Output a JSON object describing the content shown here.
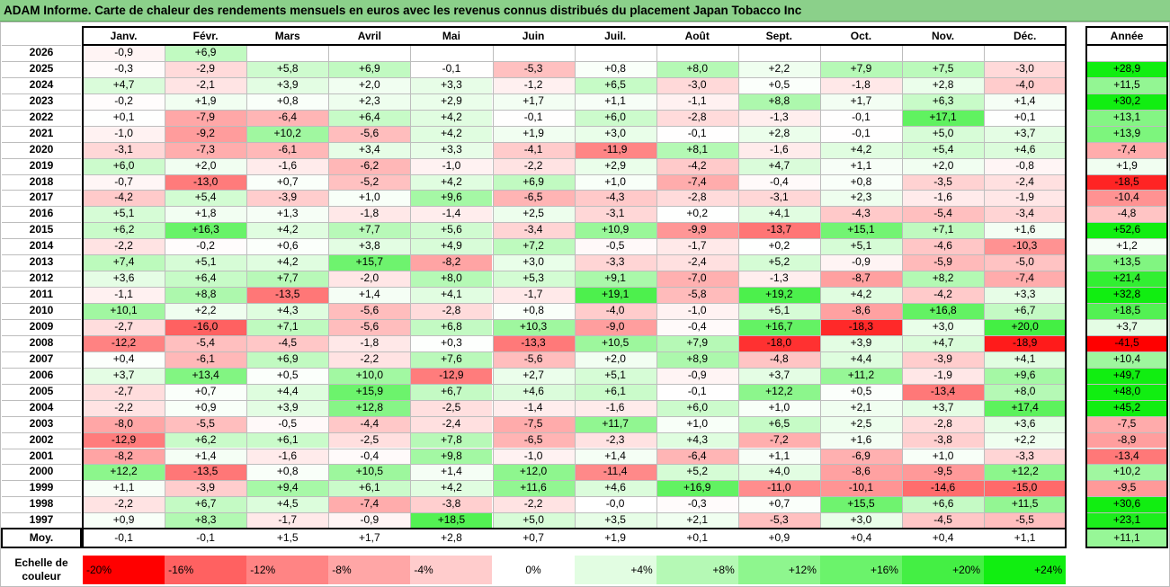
{
  "title": "ADAM Informe. Carte de chaleur des rendements mensuels en euros avec les revenus connus distribués du placement Japan Tobacco Inc",
  "chart_data": {
    "type": "heatmap",
    "months": [
      "Janv.",
      "Févr.",
      "Mars",
      "Avril",
      "Mai",
      "Juin",
      "Juil.",
      "Août",
      "Sept.",
      "Oct.",
      "Nov.",
      "Déc."
    ],
    "year_header": "Année",
    "avg_label": "Moy.",
    "rows": [
      {
        "year": "2026",
        "values": [
          "-0,9",
          "+6,9",
          "",
          "",
          "",
          "",
          "",
          "",
          "",
          "",
          "",
          ""
        ],
        "annual": ""
      },
      {
        "year": "2025",
        "values": [
          "-0,3",
          "-2,9",
          "+5,8",
          "+6,9",
          "-0,1",
          "-5,3",
          "+0,8",
          "+8,0",
          "+2,2",
          "+7,9",
          "+7,5",
          "-3,0"
        ],
        "annual": "+28,9"
      },
      {
        "year": "2024",
        "values": [
          "+4,7",
          "-2,1",
          "+3,9",
          "+2,0",
          "+3,3",
          "-1,2",
          "+6,5",
          "-3,0",
          "+0,5",
          "-1,8",
          "+2,8",
          "-4,0"
        ],
        "annual": "+11,5"
      },
      {
        "year": "2023",
        "values": [
          "-0,2",
          "+1,9",
          "+0,8",
          "+2,3",
          "+2,9",
          "+1,7",
          "+1,1",
          "-1,1",
          "+8,8",
          "+1,7",
          "+6,3",
          "+1,4"
        ],
        "annual": "+30,2"
      },
      {
        "year": "2022",
        "values": [
          "+0,1",
          "-7,9",
          "-6,4",
          "+6,4",
          "+4,2",
          "-0,1",
          "+6,0",
          "-2,8",
          "-1,3",
          "-0,1",
          "+17,1",
          "+0,1"
        ],
        "annual": "+13,1"
      },
      {
        "year": "2021",
        "values": [
          "-1,0",
          "-9,2",
          "+10,2",
          "-5,6",
          "+4,2",
          "+1,9",
          "+3,0",
          "-0,1",
          "+2,8",
          "-0,1",
          "+5,0",
          "+3,7"
        ],
        "annual": "+13,9"
      },
      {
        "year": "2020",
        "values": [
          "-3,1",
          "-7,3",
          "-6,1",
          "+3,4",
          "+3,3",
          "-4,1",
          "-11,9",
          "+8,1",
          "-1,6",
          "+4,2",
          "+5,4",
          "+4,6"
        ],
        "annual": "-7,4"
      },
      {
        "year": "2019",
        "values": [
          "+6,0",
          "+2,0",
          "-1,6",
          "-6,2",
          "-1,0",
          "-2,2",
          "+2,9",
          "-4,2",
          "+4,7",
          "+1,1",
          "+2,0",
          "-0,8"
        ],
        "annual": "+1,9"
      },
      {
        "year": "2018",
        "values": [
          "-0,7",
          "-13,0",
          "+0,7",
          "-5,2",
          "+4,2",
          "+6,9",
          "+1,0",
          "-7,4",
          "-0,4",
          "+0,8",
          "-3,5",
          "-2,4"
        ],
        "annual": "-18,5"
      },
      {
        "year": "2017",
        "values": [
          "-4,2",
          "+5,4",
          "-3,9",
          "+1,0",
          "+9,6",
          "-6,5",
          "-4,3",
          "-2,8",
          "-3,1",
          "+2,3",
          "-1,6",
          "-1,9"
        ],
        "annual": "-10,4"
      },
      {
        "year": "2016",
        "values": [
          "+5,1",
          "+1,8",
          "+1,3",
          "-1,8",
          "-1,4",
          "+2,5",
          "-3,1",
          "+0,2",
          "+4,1",
          "-4,3",
          "-5,4",
          "-3,4"
        ],
        "annual": "-4,8"
      },
      {
        "year": "2015",
        "values": [
          "+6,2",
          "+16,3",
          "+4,2",
          "+7,7",
          "+5,6",
          "-3,4",
          "+10,9",
          "-9,9",
          "-13,7",
          "+15,1",
          "+7,1",
          "+1,6"
        ],
        "annual": "+52,6"
      },
      {
        "year": "2014",
        "values": [
          "-2,2",
          "-0,2",
          "+0,6",
          "+3,8",
          "+4,9",
          "+7,2",
          "-0,5",
          "-1,7",
          "+0,2",
          "+5,1",
          "-4,6",
          "-10,3"
        ],
        "annual": "+1,2"
      },
      {
        "year": "2013",
        "values": [
          "+7,4",
          "+5,1",
          "+4,2",
          "+15,7",
          "-8,2",
          "+3,0",
          "-3,3",
          "-2,4",
          "+5,2",
          "-0,9",
          "-5,9",
          "-5,0"
        ],
        "annual": "+13,5"
      },
      {
        "year": "2012",
        "values": [
          "+3,6",
          "+6,4",
          "+7,7",
          "-2,0",
          "+8,0",
          "+5,3",
          "+9,1",
          "-7,0",
          "-1,3",
          "-8,7",
          "+8,2",
          "-7,4"
        ],
        "annual": "+21,4"
      },
      {
        "year": "2011",
        "values": [
          "-1,1",
          "+8,8",
          "-13,5",
          "+1,4",
          "+4,1",
          "-1,7",
          "+19,1",
          "-5,8",
          "+19,2",
          "+4,2",
          "-4,2",
          "+3,3"
        ],
        "annual": "+32,8"
      },
      {
        "year": "2010",
        "values": [
          "+10,1",
          "+2,2",
          "+4,3",
          "-5,6",
          "-2,8",
          "+0,8",
          "-4,0",
          "-1,0",
          "+5,1",
          "-8,6",
          "+16,8",
          "+6,7"
        ],
        "annual": "+18,5"
      },
      {
        "year": "2009",
        "values": [
          "-2,7",
          "-16,0",
          "+7,1",
          "-5,6",
          "+6,8",
          "+10,3",
          "-9,0",
          "-0,4",
          "+16,7",
          "-18,3",
          "+3,0",
          "+20,0"
        ],
        "annual": "+3,7"
      },
      {
        "year": "2008",
        "values": [
          "-12,2",
          "-5,4",
          "-4,5",
          "-1,8",
          "+0,3",
          "-13,3",
          "+10,5",
          "+7,9",
          "-18,0",
          "+3,9",
          "+4,7",
          "-18,9"
        ],
        "annual": "-41,5"
      },
      {
        "year": "2007",
        "values": [
          "+0,4",
          "-6,1",
          "+6,9",
          "-2,2",
          "+7,6",
          "-5,6",
          "+2,0",
          "+8,9",
          "-4,8",
          "+4,4",
          "-3,9",
          "+4,1"
        ],
        "annual": "+10,4"
      },
      {
        "year": "2006",
        "values": [
          "+3,7",
          "+13,4",
          "+0,5",
          "+10,0",
          "-12,9",
          "+2,7",
          "+5,1",
          "-0,9",
          "+3,7",
          "+11,2",
          "-1,9",
          "+9,6"
        ],
        "annual": "+49,7"
      },
      {
        "year": "2005",
        "values": [
          "-2,7",
          "+0,7",
          "+4,4",
          "+15,9",
          "+6,7",
          "+4,6",
          "+6,1",
          "-0,1",
          "+12,2",
          "+0,5",
          "-13,4",
          "+8,0"
        ],
        "annual": "+48,0"
      },
      {
        "year": "2004",
        "values": [
          "-2,2",
          "+0,9",
          "+3,9",
          "+12,8",
          "-2,5",
          "-1,4",
          "-1,6",
          "+6,0",
          "+1,0",
          "+2,1",
          "+3,7",
          "+17,4"
        ],
        "annual": "+45,2"
      },
      {
        "year": "2003",
        "values": [
          "-8,0",
          "-5,5",
          "-0,5",
          "-4,4",
          "-2,4",
          "-7,5",
          "+11,7",
          "+1,0",
          "+6,5",
          "+2,5",
          "-2,8",
          "+3,6"
        ],
        "annual": "-7,5"
      },
      {
        "year": "2002",
        "values": [
          "-12,9",
          "+6,2",
          "+6,1",
          "-2,5",
          "+7,8",
          "-6,5",
          "-2,3",
          "+4,3",
          "-7,2",
          "+1,6",
          "-3,8",
          "+2,2"
        ],
        "annual": "-8,9"
      },
      {
        "year": "2001",
        "values": [
          "-8,2",
          "+1,4",
          "-1,6",
          "-0,4",
          "+9,8",
          "-1,0",
          "+1,4",
          "-6,4",
          "+1,1",
          "-6,9",
          "+1,0",
          "-3,3"
        ],
        "annual": "-13,4"
      },
      {
        "year": "2000",
        "values": [
          "+12,2",
          "-13,5",
          "+0,8",
          "+10,5",
          "+1,4",
          "+12,0",
          "-11,4",
          "+5,2",
          "+4,0",
          "-8,6",
          "-9,5",
          "+12,2"
        ],
        "annual": "+10,2"
      },
      {
        "year": "1999",
        "values": [
          "+1,1",
          "-3,9",
          "+9,4",
          "+6,1",
          "+4,2",
          "+11,6",
          "+4,6",
          "+16,9",
          "-11,0",
          "-10,1",
          "-14,6",
          "-15,0"
        ],
        "annual": "-9,5"
      },
      {
        "year": "1998",
        "values": [
          "-2,2",
          "+6,7",
          "+4,5",
          "-7,4",
          "-3,8",
          "-2,2",
          "-0,0",
          "-0,3",
          "+0,7",
          "+15,5",
          "+6,6",
          "+11,5"
        ],
        "annual": "+30,6"
      },
      {
        "year": "1997",
        "values": [
          "+0,9",
          "+8,3",
          "-1,7",
          "-0,9",
          "+18,5",
          "+5,0",
          "+3,5",
          "+2,1",
          "-5,3",
          "+3,0",
          "-4,5",
          "-5,5"
        ],
        "annual": "+23,1"
      }
    ],
    "averages": [
      "-0,1",
      "-0,1",
      "+1,5",
      "+1,7",
      "+2,8",
      "+0,7",
      "+1,9",
      "+0,1",
      "+0,9",
      "+0,4",
      "+0,4",
      "+1,1"
    ],
    "avg_annual": "+11,1",
    "legend_label": "Echelle de couleur",
    "legend_label_lines": [
      "Echelle de",
      "couleur"
    ],
    "legend": [
      {
        "label": "-20%",
        "color": "#ff0000"
      },
      {
        "label": "-16%",
        "color": "#ff6161"
      },
      {
        "label": "-12%",
        "color": "#ff8484"
      },
      {
        "label": "-8%",
        "color": "#ffa6a6"
      },
      {
        "label": "-4%",
        "color": "#ffcccc"
      },
      {
        "label": "0%",
        "color": "#ffffff"
      },
      {
        "label": "+4%",
        "color": "#e2fde2"
      },
      {
        "label": "+8%",
        "color": "#b5f9b5"
      },
      {
        "label": "+12%",
        "color": "#8ef68e"
      },
      {
        "label": "+16%",
        "color": "#6bf36b"
      },
      {
        "label": "+20%",
        "color": "#44ef44"
      },
      {
        "label": "+24%",
        "color": "#11ee11"
      }
    ]
  }
}
